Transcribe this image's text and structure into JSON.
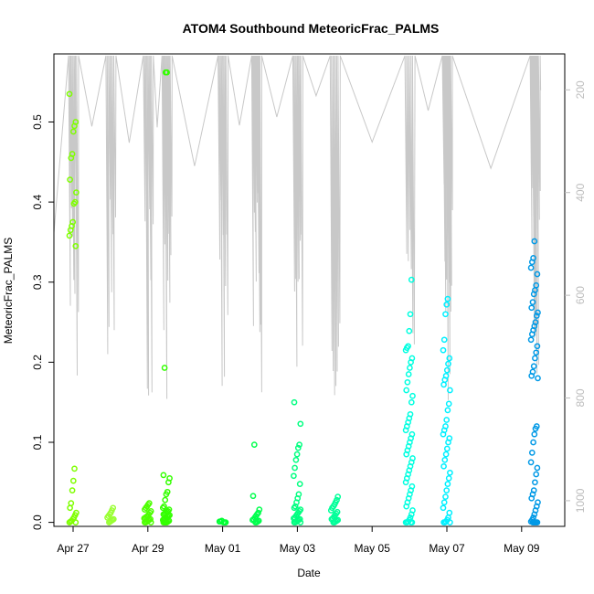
{
  "chart_data": {
    "type": "scatter",
    "title": "ATOM4 Southbound MeteoricFrac_PALMS",
    "xlabel": "Date",
    "ylabel": "MeteoricFrac_PALMS",
    "ylim": [
      -0.005,
      0.585
    ],
    "y_ticks": [
      "0.0",
      "0.1",
      "0.2",
      "0.3",
      "0.4",
      "0.5"
    ],
    "x_ticks": [
      "Apr 27",
      "Apr 29",
      "May 01",
      "May 03",
      "May 05",
      "May 07",
      "May 09"
    ],
    "right_axis_ticks": [
      "200",
      "400",
      "600",
      "800",
      "1000"
    ],
    "right_axis_range": [
      130,
      1050
    ],
    "right_axis_reversed": true,
    "grid": false,
    "legend": "none",
    "marker": "open-circle",
    "series": [
      {
        "day": 0.0,
        "color": "#7fff00",
        "values": [
          0.535,
          0.5,
          0.495,
          0.488,
          0.46,
          0.455,
          0.428,
          0.412,
          0.4,
          0.398,
          0.375,
          0.37,
          0.365,
          0.358,
          0.345,
          0.067,
          0.052,
          0.04,
          0.024,
          0.018,
          0.012,
          0.009,
          0.006,
          0.004,
          0.002,
          0.001,
          0.0,
          0.0
        ]
      },
      {
        "day": 1.0,
        "color": "#99ff33",
        "values": [
          0.018,
          0.015,
          0.012,
          0.01,
          0.008,
          0.006,
          0.004,
          0.003,
          0.002,
          0.001,
          0.0
        ]
      },
      {
        "day": 2.0,
        "color": "#4dff00",
        "values": [
          0.024,
          0.022,
          0.02,
          0.018,
          0.016,
          0.014,
          0.012,
          0.01,
          0.008,
          0.007,
          0.006,
          0.005,
          0.004,
          0.003,
          0.002,
          0.001,
          0.0,
          0.0,
          0.0
        ]
      },
      {
        "day": 2.5,
        "color": "#33ff00",
        "values": [
          0.562,
          0.562,
          0.193,
          0.059,
          0.055,
          0.05,
          0.038,
          0.035,
          0.028,
          0.02,
          0.018,
          0.016,
          0.014,
          0.013,
          0.012,
          0.011,
          0.01,
          0.009,
          0.008,
          0.007,
          0.006,
          0.005,
          0.004,
          0.003,
          0.002,
          0.001,
          0.0,
          0.0,
          0.0,
          0.0
        ]
      },
      {
        "day": 4.0,
        "color": "#00ff33",
        "values": [
          0.002,
          0.001,
          0.001,
          0.0,
          0.0,
          0.0
        ]
      },
      {
        "day": 4.9,
        "color": "#00ff4d",
        "values": [
          0.097,
          0.033,
          0.016,
          0.012,
          0.01,
          0.008,
          0.006,
          0.004,
          0.003,
          0.002,
          0.001,
          0.0,
          0.0
        ]
      },
      {
        "day": 6.0,
        "color": "#00ff80",
        "values": [
          0.15,
          0.123,
          0.097,
          0.093,
          0.085,
          0.078,
          0.068,
          0.058,
          0.048,
          0.035,
          0.03,
          0.025,
          0.02,
          0.018,
          0.016,
          0.014,
          0.012,
          0.01,
          0.008,
          0.006,
          0.005,
          0.004,
          0.003,
          0.002,
          0.001,
          0.0,
          0.0,
          0.0
        ]
      },
      {
        "day": 7.0,
        "color": "#00ff99",
        "values": [
          0.032,
          0.028,
          0.025,
          0.022,
          0.02,
          0.018,
          0.015,
          0.013,
          0.011,
          0.009,
          0.007,
          0.005,
          0.004,
          0.003,
          0.002,
          0.001,
          0.0,
          0.0
        ]
      },
      {
        "day": 9.0,
        "color": "#00ffe0",
        "values": [
          0.303,
          0.26,
          0.239,
          0.22,
          0.218,
          0.215,
          0.205,
          0.2,
          0.193,
          0.185,
          0.175,
          0.165,
          0.158,
          0.15,
          0.135,
          0.13,
          0.125,
          0.12,
          0.115,
          0.11,
          0.105,
          0.1,
          0.095,
          0.09,
          0.085,
          0.08,
          0.075,
          0.07,
          0.065,
          0.06,
          0.055,
          0.05,
          0.045,
          0.04,
          0.035,
          0.03,
          0.025,
          0.02,
          0.015,
          0.01,
          0.006,
          0.003,
          0.001,
          0.0,
          0.0,
          0.0,
          0.0
        ]
      },
      {
        "day": 10.0,
        "color": "#00f0ff",
        "values": [
          0.279,
          0.272,
          0.26,
          0.228,
          0.215,
          0.205,
          0.198,
          0.19,
          0.183,
          0.178,
          0.172,
          0.165,
          0.148,
          0.14,
          0.128,
          0.12,
          0.115,
          0.11,
          0.105,
          0.1,
          0.092,
          0.085,
          0.078,
          0.07,
          0.062,
          0.055,
          0.048,
          0.04,
          0.032,
          0.025,
          0.018,
          0.012,
          0.006,
          0.003,
          0.001,
          0.0,
          0.0,
          0.0
        ]
      },
      {
        "day": 12.35,
        "color": "#0099e6",
        "values": [
          0.351,
          0.33,
          0.325,
          0.318,
          0.31,
          0.296,
          0.29,
          0.285,
          0.275,
          0.268,
          0.262,
          0.258,
          0.25,
          0.245,
          0.24,
          0.235,
          0.228,
          0.22,
          0.212,
          0.205,
          0.195,
          0.188,
          0.183,
          0.18,
          0.12,
          0.117,
          0.11,
          0.1,
          0.087,
          0.075,
          0.068,
          0.06,
          0.05,
          0.04,
          0.035,
          0.03,
          0.025,
          0.02,
          0.015,
          0.01,
          0.006,
          0.003,
          0.001,
          0.0,
          0.0,
          0.0,
          0.0,
          0.0
        ]
      }
    ]
  }
}
